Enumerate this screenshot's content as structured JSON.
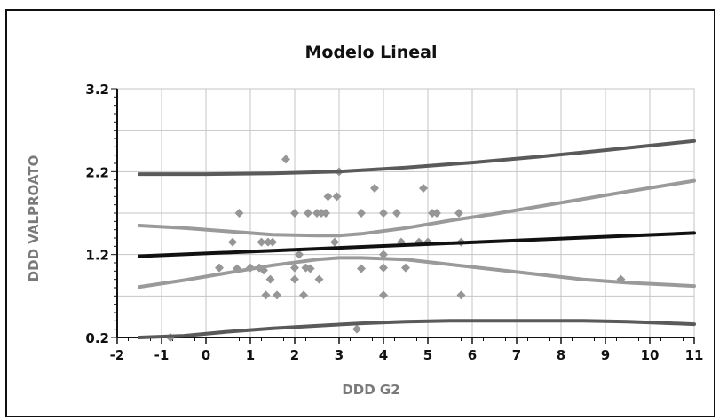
{
  "chart_data": {
    "type": "scatter",
    "title": "Modelo Lineal",
    "xlabel": "DDD G2",
    "ylabel": "DDD VALPROATO",
    "xlim": [
      -2,
      11
    ],
    "ylim": [
      0.2,
      3.2
    ],
    "x_ticks": [
      "-2",
      "-1",
      "0",
      "1",
      "2",
      "3",
      "4",
      "5",
      "6",
      "7",
      "8",
      "9",
      "10",
      "11"
    ],
    "y_ticks": [
      "0.2",
      "1.2",
      "2.2",
      "3.2"
    ],
    "grid": true,
    "colors": {
      "points": "#969696",
      "fit": "#111111",
      "confidence": "#9a9a9a",
      "prediction": "#5a5a5a",
      "grid": "#c4c4c4"
    },
    "points": [
      [
        -0.8,
        0.2
      ],
      [
        0.3,
        1.04
      ],
      [
        0.6,
        1.35
      ],
      [
        0.7,
        1.03
      ],
      [
        0.75,
        1.7
      ],
      [
        1.0,
        1.04
      ],
      [
        1.2,
        1.04
      ],
      [
        1.25,
        1.35
      ],
      [
        1.3,
        1.01
      ],
      [
        1.35,
        0.71
      ],
      [
        1.4,
        1.35
      ],
      [
        1.45,
        0.9
      ],
      [
        1.5,
        1.35
      ],
      [
        1.6,
        0.71
      ],
      [
        1.8,
        2.35
      ],
      [
        2.0,
        1.7
      ],
      [
        2.0,
        1.04
      ],
      [
        2.0,
        0.9
      ],
      [
        2.1,
        1.2
      ],
      [
        2.2,
        0.71
      ],
      [
        2.25,
        1.04
      ],
      [
        2.3,
        1.7
      ],
      [
        2.35,
        1.03
      ],
      [
        2.5,
        1.7
      ],
      [
        2.55,
        0.9
      ],
      [
        2.6,
        1.7
      ],
      [
        2.7,
        1.7
      ],
      [
        2.75,
        1.9
      ],
      [
        2.9,
        1.35
      ],
      [
        2.95,
        1.9
      ],
      [
        3.0,
        2.2
      ],
      [
        3.4,
        0.3
      ],
      [
        3.5,
        1.03
      ],
      [
        3.5,
        1.7
      ],
      [
        3.8,
        2.0
      ],
      [
        4.0,
        1.7
      ],
      [
        4.0,
        1.2
      ],
      [
        4.0,
        1.04
      ],
      [
        4.0,
        0.71
      ],
      [
        4.3,
        1.7
      ],
      [
        4.4,
        1.35
      ],
      [
        4.5,
        1.04
      ],
      [
        4.8,
        1.35
      ],
      [
        4.9,
        2.0
      ],
      [
        5.0,
        1.35
      ],
      [
        5.1,
        1.7
      ],
      [
        5.2,
        1.7
      ],
      [
        5.7,
        1.7
      ],
      [
        5.75,
        1.35
      ],
      [
        5.75,
        0.71
      ],
      [
        9.35,
        0.9
      ]
    ],
    "series": [
      {
        "x": [
          -1.5,
          11
        ],
        "y": [
          1.18,
          1.46
        ]
      },
      {
        "x": [
          -1.5,
          -0.5,
          0.5,
          1.5,
          2.5,
          3.0,
          3.5,
          4.5,
          5.5,
          6.5,
          7.5,
          8.5,
          9.5,
          11
        ],
        "y": [
          1.55,
          1.52,
          1.48,
          1.44,
          1.43,
          1.43,
          1.45,
          1.52,
          1.61,
          1.69,
          1.78,
          1.87,
          1.96,
          2.09
        ]
      },
      {
        "x": [
          -1.5,
          -0.5,
          0.5,
          1.5,
          2.5,
          3.0,
          3.5,
          4.5,
          5.5,
          6.5,
          7.5,
          8.5,
          9.5,
          11
        ],
        "y": [
          0.81,
          0.89,
          0.98,
          1.07,
          1.14,
          1.16,
          1.16,
          1.14,
          1.08,
          1.02,
          0.96,
          0.9,
          0.86,
          0.82
        ]
      },
      {
        "x": [
          -1.5,
          0,
          1.5,
          3,
          4.5,
          6,
          7.5,
          9,
          11
        ],
        "y": [
          2.17,
          2.17,
          2.18,
          2.2,
          2.25,
          2.31,
          2.38,
          2.46,
          2.57
        ]
      },
      {
        "x": [
          -1.5,
          -0.5,
          0.5,
          1.5,
          2.5,
          3.5,
          4.5,
          5.5,
          6.5,
          7.5,
          8.5,
          9.5,
          10.5,
          11
        ],
        "y": [
          0.2,
          0.22,
          0.27,
          0.31,
          0.34,
          0.37,
          0.39,
          0.4,
          0.4,
          0.4,
          0.4,
          0.39,
          0.37,
          0.36
        ]
      }
    ]
  }
}
